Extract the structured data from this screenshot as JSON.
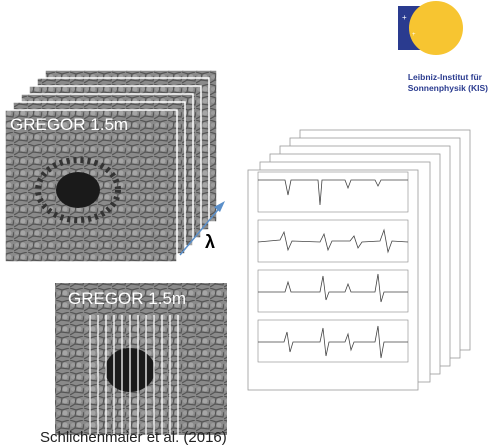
{
  "images": [
    {
      "label": "GREGOR 1.5m"
    },
    {
      "label": "GREGOR 1.5m"
    }
  ],
  "wavelength_symbol": "λ",
  "logo": {
    "line1": "Leibniz-Institut für",
    "line2": "Sonnenphysik (KIS)"
  },
  "caption": "Schlichenmaier et al. (2016)"
}
